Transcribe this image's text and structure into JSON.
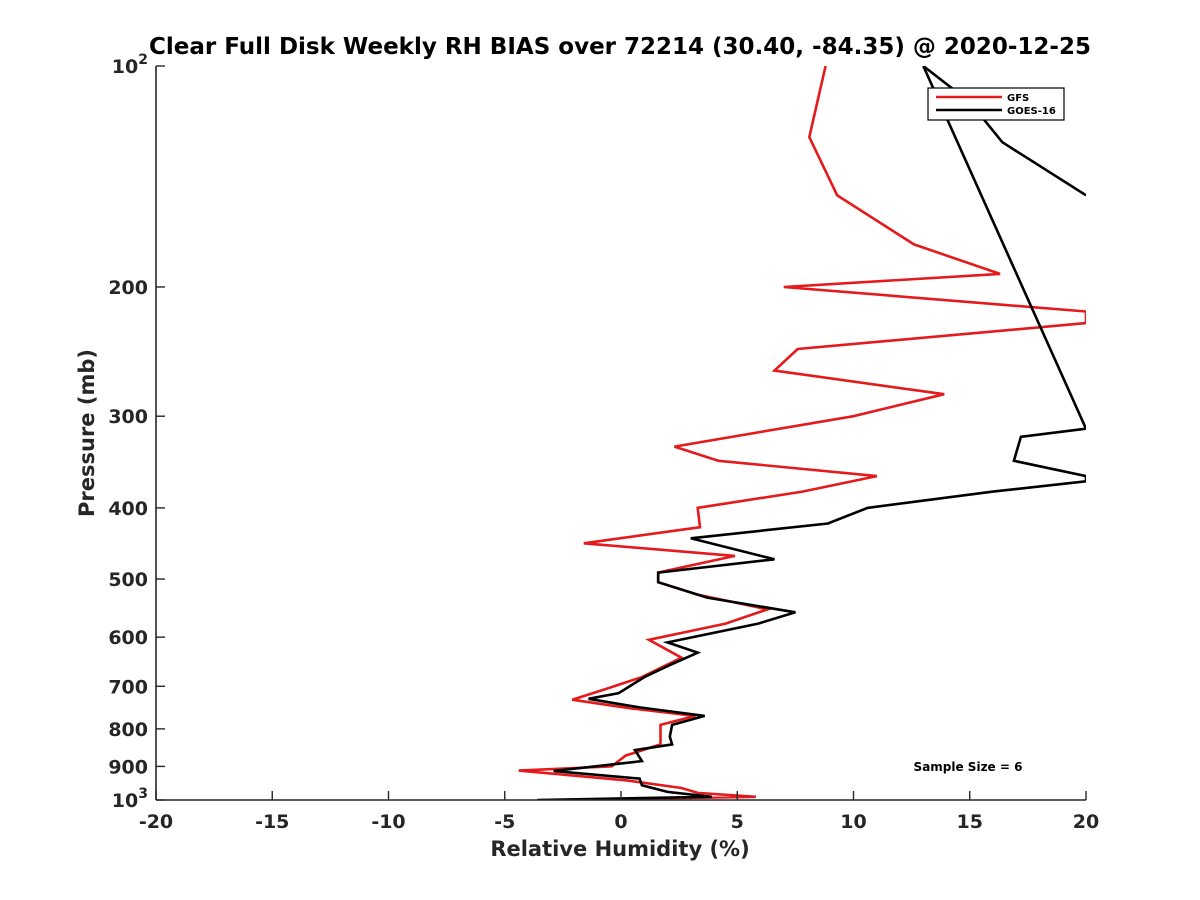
{
  "chart_data": {
    "type": "line",
    "title": "Clear Full Disk Weekly RH BIAS over 72214 (30.40, -84.35) @ 2020-12-25",
    "xlabel": "Relative Humidity (%)",
    "ylabel": "Pressure (mb)",
    "xlim": [
      -20,
      20
    ],
    "ylim": [
      100,
      1000
    ],
    "yscale": "log",
    "yreversed": true,
    "x_ticks": [
      -20,
      -15,
      -10,
      -5,
      0,
      5,
      10,
      15,
      20
    ],
    "x_tick_labels": [
      "-20",
      "-15",
      "-10",
      "-5",
      "0",
      "5",
      "10",
      "15",
      "20"
    ],
    "y_ticks": [
      100,
      200,
      300,
      400,
      500,
      600,
      700,
      800,
      900,
      1000
    ],
    "y_tick_labels": [
      {
        "base": "10",
        "exp": "2"
      },
      {
        "base": "200",
        "exp": ""
      },
      {
        "base": "300",
        "exp": ""
      },
      {
        "base": "400",
        "exp": ""
      },
      {
        "base": "500",
        "exp": ""
      },
      {
        "base": "600",
        "exp": ""
      },
      {
        "base": "700",
        "exp": ""
      },
      {
        "base": "800",
        "exp": ""
      },
      {
        "base": "900",
        "exp": ""
      },
      {
        "base": "10",
        "exp": "3"
      }
    ],
    "legend_position": "top-right",
    "annotation": "Sample Size = 6",
    "series": [
      {
        "name": "GFS",
        "color": "#e41a1c",
        "points": [
          [
            8.8,
            100
          ],
          [
            8.1,
            125
          ],
          [
            9.3,
            150
          ],
          [
            12.6,
            175
          ],
          [
            16.3,
            192
          ],
          [
            7.0,
            200
          ],
          [
            20.0,
            216
          ],
          [
            20.0,
            224
          ],
          [
            7.6,
            243
          ],
          [
            6.6,
            260
          ],
          [
            13.9,
            280
          ],
          [
            10.0,
            300
          ],
          [
            2.3,
            330
          ],
          [
            4.2,
            345
          ],
          [
            11.0,
            362
          ],
          [
            7.8,
            380
          ],
          [
            3.3,
            400
          ],
          [
            3.4,
            425
          ],
          [
            -1.6,
            447
          ],
          [
            4.9,
            465
          ],
          [
            1.6,
            490
          ],
          [
            1.6,
            505
          ],
          [
            3.3,
            525
          ],
          [
            6.3,
            550
          ],
          [
            4.5,
            575
          ],
          [
            1.2,
            605
          ],
          [
            2.6,
            640
          ],
          [
            0.9,
            680
          ],
          [
            -0.6,
            705
          ],
          [
            -2.1,
            730
          ],
          [
            0.4,
            750
          ],
          [
            3.2,
            768
          ],
          [
            1.7,
            790
          ],
          [
            1.7,
            840
          ],
          [
            0.2,
            870
          ],
          [
            -0.4,
            900
          ],
          [
            -4.4,
            912
          ],
          [
            0.2,
            940
          ],
          [
            2.6,
            963
          ],
          [
            3.3,
            978
          ],
          [
            5.8,
            990
          ],
          [
            1.5,
            995
          ],
          [
            0.3,
            1000
          ]
        ]
      },
      {
        "name": "GOES-16",
        "color": "#000000",
        "points": [
          [
            20.0,
            150
          ],
          [
            16.4,
            127
          ],
          [
            15.0,
            112
          ],
          [
            13.0,
            100
          ],
          [
            20.0,
            312
          ],
          [
            17.2,
            320
          ],
          [
            16.9,
            345
          ],
          [
            20.0,
            362
          ],
          [
            20.0,
            368
          ],
          [
            16.0,
            380
          ],
          [
            10.6,
            400
          ],
          [
            8.9,
            420
          ],
          [
            3.0,
            440
          ],
          [
            6.6,
            470
          ],
          [
            1.6,
            490
          ],
          [
            1.6,
            505
          ],
          [
            3.7,
            530
          ],
          [
            7.5,
            555
          ],
          [
            5.9,
            575
          ],
          [
            2.0,
            610
          ],
          [
            3.3,
            630
          ],
          [
            2.1,
            655
          ],
          [
            1.0,
            680
          ],
          [
            -0.1,
            715
          ],
          [
            -1.4,
            728
          ],
          [
            0.8,
            748
          ],
          [
            3.6,
            768
          ],
          [
            2.2,
            790
          ],
          [
            2.1,
            820
          ],
          [
            2.2,
            840
          ],
          [
            0.6,
            855
          ],
          [
            0.9,
            885
          ],
          [
            -2.9,
            913
          ],
          [
            0.8,
            935
          ],
          [
            0.9,
            955
          ],
          [
            2.0,
            975
          ],
          [
            3.9,
            990
          ],
          [
            -3.6,
            1000
          ]
        ]
      }
    ]
  }
}
